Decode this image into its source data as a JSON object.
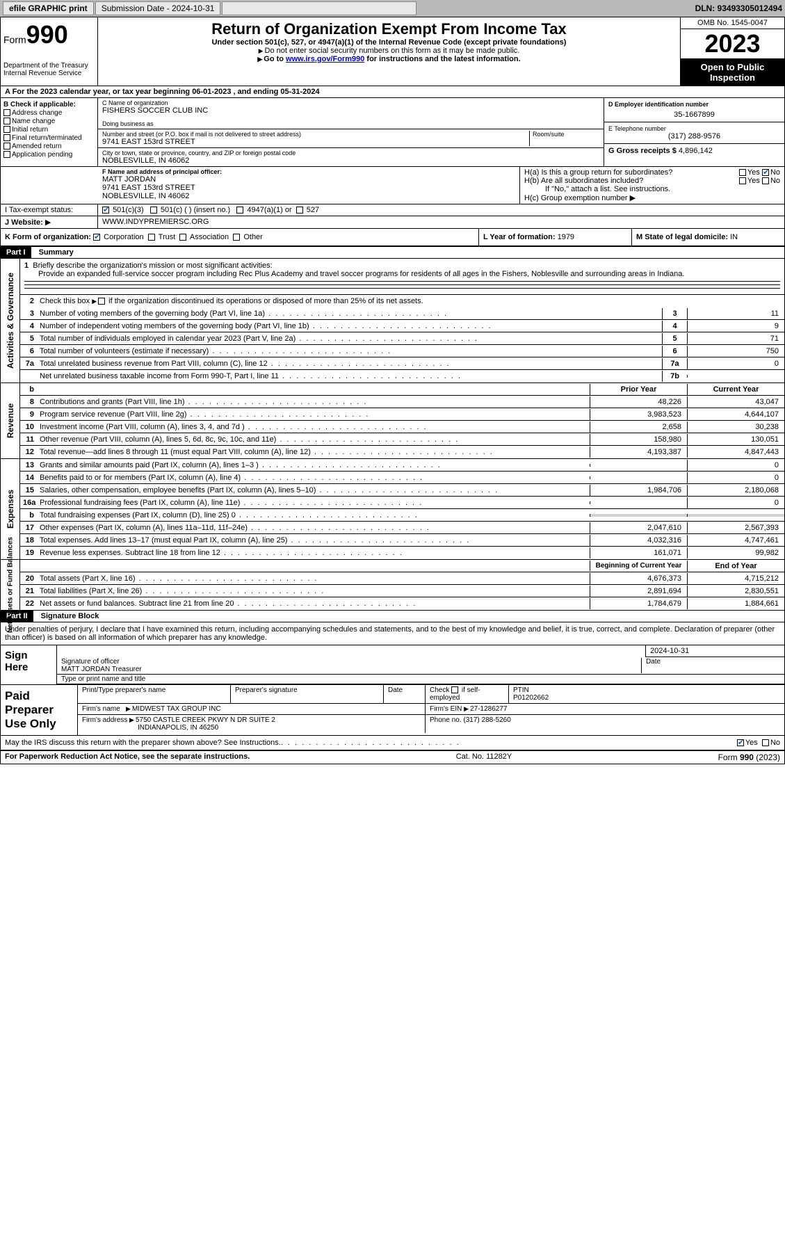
{
  "toolbar": {
    "efile": "efile GRAPHIC print",
    "submission": "Submission Date - 2024-10-31",
    "dln": "DLN: 93493305012494"
  },
  "header": {
    "form": "Form",
    "num": "990",
    "dept": "Department of the Treasury\nInternal Revenue Service",
    "title": "Return of Organization Exempt From Income Tax",
    "sub1": "Under section 501(c), 527, or 4947(a)(1) of the Internal Revenue Code (except private foundations)",
    "sub2": "Do not enter social security numbers on this form as it may be made public.",
    "sub3_pre": "Go to ",
    "sub3_link": "www.irs.gov/Form990",
    "sub3_post": " for instructions and the latest information.",
    "omb": "OMB No. 1545-0047",
    "year": "2023",
    "otp": "Open to Public Inspection"
  },
  "row_a": "A For the 2023 calendar year, or tax year beginning 06-01-2023   , and ending 05-31-2024",
  "box_b": {
    "label": "B Check if applicable:",
    "items": [
      "Address change",
      "Name change",
      "Initial return",
      "Final return/terminated",
      "Amended return",
      "Application pending"
    ]
  },
  "box_c": {
    "lbl_name": "C Name of organization",
    "name": "FISHERS SOCCER CLUB INC",
    "lbl_dba": "Doing business as",
    "dba": "",
    "lbl_addr": "Number and street (or P.O. box if mail is not delivered to street address)",
    "lbl_room": "Room/suite",
    "addr": "9741 EAST 153rd STREET",
    "lbl_city": "City or town, state or province, country, and ZIP or foreign postal code",
    "city": "NOBLESVILLE, IN  46062"
  },
  "box_d": {
    "lbl": "D Employer identification number",
    "val": "35-1667899"
  },
  "box_e": {
    "lbl": "E Telephone number",
    "val": "(317) 288-9576"
  },
  "box_g": {
    "lbl": "G Gross receipts $",
    "val": "4,896,142"
  },
  "box_f": {
    "lbl": "F  Name and address of principal officer:",
    "name": "MATT JORDAN",
    "addr1": "9741 EAST 153rd STREET",
    "addr2": "NOBLESVILLE, IN  46062"
  },
  "box_h": {
    "a": "H(a)  Is this a group return for subordinates?",
    "a_yes": "Yes",
    "a_no": "No",
    "b": "H(b)  Are all subordinates included?",
    "b_note": "If \"No,\" attach a list. See instructions.",
    "c": "H(c)  Group exemption number",
    "c_arrow": "▶"
  },
  "box_i": {
    "lbl": "I   Tax-exempt status:",
    "o1": "501(c)(3)",
    "o2": "501(c) (  ) (insert no.)",
    "o3": "4947(a)(1) or",
    "o4": "527"
  },
  "box_j": {
    "lbl": "J   Website:",
    "arrow": "▶",
    "val": "WWW.INDYPREMIERSC.ORG"
  },
  "box_k": {
    "lbl": "K Form of organization:",
    "o1": "Corporation",
    "o2": "Trust",
    "o3": "Association",
    "o4": "Other"
  },
  "box_l": {
    "lbl": "L Year of formation:",
    "val": "1979"
  },
  "box_m": {
    "lbl": "M State of legal domicile:",
    "val": "IN"
  },
  "part1": {
    "hdr": "Part I",
    "title": "Summary",
    "side_gov": "Activities & Governance",
    "side_rev": "Revenue",
    "side_exp": "Expenses",
    "side_net": "Net Assets or Fund Balances",
    "l1_lbl": "Briefly describe the organization's mission or most significant activities:",
    "l1_txt": "Provide an expanded full-service soccer program including Rec Plus Academy and travel soccer programs for residents of all ages in the Fishers, Noblesville and surrounding areas in Indiana.",
    "l2": "Check this box        if the organization discontinued its operations or disposed of more than 25% of its net assets.",
    "lines_gov": [
      {
        "n": "3",
        "t": "Number of voting members of the governing body (Part VI, line 1a)",
        "c": "3",
        "v": "11"
      },
      {
        "n": "4",
        "t": "Number of independent voting members of the governing body (Part VI, line 1b)",
        "c": "4",
        "v": "9"
      },
      {
        "n": "5",
        "t": "Total number of individuals employed in calendar year 2023 (Part V, line 2a)",
        "c": "5",
        "v": "71"
      },
      {
        "n": "6",
        "t": "Total number of volunteers (estimate if necessary)",
        "c": "6",
        "v": "750"
      },
      {
        "n": "7a",
        "t": "Total unrelated business revenue from Part VIII, column (C), line 12",
        "c": "7a",
        "v": "0"
      },
      {
        "n": "",
        "t": "Net unrelated business taxable income from Form 990-T, Part I, line 11",
        "c": "7b",
        "v": ""
      }
    ],
    "col_prior": "Prior Year",
    "col_curr": "Current Year",
    "lines_rev": [
      {
        "n": "8",
        "t": "Contributions and grants (Part VIII, line 1h)",
        "p": "48,226",
        "c": "43,047"
      },
      {
        "n": "9",
        "t": "Program service revenue (Part VIII, line 2g)",
        "p": "3,983,523",
        "c": "4,644,107"
      },
      {
        "n": "10",
        "t": "Investment income (Part VIII, column (A), lines 3, 4, and 7d )",
        "p": "2,658",
        "c": "30,238"
      },
      {
        "n": "11",
        "t": "Other revenue (Part VIII, column (A), lines 5, 6d, 8c, 9c, 10c, and 11e)",
        "p": "158,980",
        "c": "130,051"
      },
      {
        "n": "12",
        "t": "Total revenue—add lines 8 through 11 (must equal Part VIII, column (A), line 12)",
        "p": "4,193,387",
        "c": "4,847,443"
      }
    ],
    "lines_exp": [
      {
        "n": "13",
        "t": "Grants and similar amounts paid (Part IX, column (A), lines 1–3 )",
        "p": "",
        "c": "0"
      },
      {
        "n": "14",
        "t": "Benefits paid to or for members (Part IX, column (A), line 4)",
        "p": "",
        "c": "0"
      },
      {
        "n": "15",
        "t": "Salaries, other compensation, employee benefits (Part IX, column (A), lines 5–10)",
        "p": "1,984,706",
        "c": "2,180,068"
      },
      {
        "n": "16a",
        "t": "Professional fundraising fees (Part IX, column (A), line 11e)",
        "p": "",
        "c": "0"
      },
      {
        "n": "b",
        "t": "Total fundraising expenses (Part IX, column (D), line 25) 0",
        "p": "GREY",
        "c": "GREY"
      },
      {
        "n": "17",
        "t": "Other expenses (Part IX, column (A), lines 11a–11d, 11f–24e)",
        "p": "2,047,610",
        "c": "2,567,393"
      },
      {
        "n": "18",
        "t": "Total expenses. Add lines 13–17 (must equal Part IX, column (A), line 25)",
        "p": "4,032,316",
        "c": "4,747,461"
      },
      {
        "n": "19",
        "t": "Revenue less expenses. Subtract line 18 from line 12",
        "p": "161,071",
        "c": "99,982"
      }
    ],
    "col_begin": "Beginning of Current Year",
    "col_end": "End of Year",
    "lines_net": [
      {
        "n": "20",
        "t": "Total assets (Part X, line 16)",
        "p": "4,676,373",
        "c": "4,715,212"
      },
      {
        "n": "21",
        "t": "Total liabilities (Part X, line 26)",
        "p": "2,891,694",
        "c": "2,830,551"
      },
      {
        "n": "22",
        "t": "Net assets or fund balances. Subtract line 21 from line 20",
        "p": "1,784,679",
        "c": "1,884,661"
      }
    ]
  },
  "part2": {
    "hdr": "Part II",
    "title": "Signature Block",
    "intro": "Under penalties of perjury, I declare that I have examined this return, including accompanying schedules and statements, and to the best of my knowledge and belief, it is true, correct, and complete. Declaration of preparer (other than officer) is based on all information of which preparer has any knowledge.",
    "sign_here": "Sign Here",
    "sig_date": "2024-10-31",
    "sig_lbl1": "Signature of officer",
    "sig_name": "MATT JORDAN  Treasurer",
    "sig_lbl2": "Type or print name and title",
    "sig_date_lbl": "Date",
    "paid": "Paid Preparer Use Only",
    "p_lbl1": "Print/Type preparer's name",
    "p_lbl2": "Preparer's signature",
    "p_lbl3": "Date",
    "p_lbl4": "Check        if self-employed",
    "p_lbl5": "PTIN",
    "p_ptin": "P01202662",
    "p_firm_lbl": "Firm's name",
    "p_firm": "MIDWEST TAX GROUP INC",
    "p_ein_lbl": "Firm's EIN",
    "p_ein": "27-1286277",
    "p_addr_lbl": "Firm's address",
    "p_addr1": "5750 CASTLE CREEK PKWY N DR SUITE 2",
    "p_addr2": "INDIANAPOLIS, IN  46250",
    "p_phone_lbl": "Phone no.",
    "p_phone": "(317) 288-5260",
    "discuss": "May the IRS discuss this return with the preparer shown above? See Instructions.",
    "yes": "Yes",
    "no": "No"
  },
  "footer": {
    "l": "For Paperwork Reduction Act Notice, see the separate instructions.",
    "c": "Cat. No. 11282Y",
    "r": "Form 990 (2023)"
  }
}
